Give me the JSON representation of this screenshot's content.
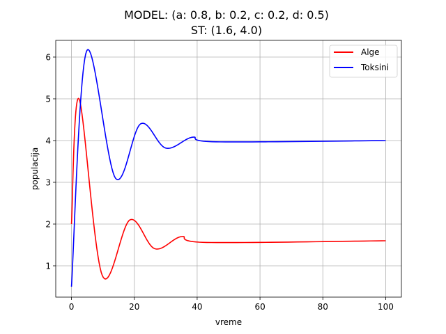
{
  "chart_data": {
    "type": "line",
    "title": "MODEL: (a: 0.8, b: 0.2, c: 0.2, d: 0.5)",
    "subtitle": "ST: (1.6, 4.0)",
    "xlabel": "vreme",
    "ylabel": "populacija",
    "xlim": [
      -5,
      105
    ],
    "ylim": [
      0.25,
      6.4
    ],
    "xticks": [
      0,
      20,
      40,
      60,
      80,
      100
    ],
    "yticks": [
      1,
      2,
      3,
      4,
      5,
      6
    ],
    "grid": true,
    "legend_position": "top-right",
    "model": {
      "a": 0.8,
      "b": 0.2,
      "c": 0.2,
      "d": 0.5
    },
    "initial": [
      2.0,
      0.5
    ],
    "steady_state": [
      1.6,
      4.0
    ],
    "t_end": 100,
    "series": [
      {
        "name": "Alge",
        "color": "#ff0000",
        "sample_points": [
          [
            0,
            2.0
          ],
          [
            2.4,
            5.0
          ],
          [
            9.8,
            0.77
          ],
          [
            18.6,
            2.1
          ],
          [
            26.5,
            1.41
          ],
          [
            35,
            1.7
          ],
          [
            43,
            1.56
          ],
          [
            100,
            1.6
          ]
        ]
      },
      {
        "name": "Toksini",
        "color": "#0000ff",
        "sample_points": [
          [
            0,
            0.5
          ],
          [
            4.8,
            6.14
          ],
          [
            14,
            3.1
          ],
          [
            22,
            4.4
          ],
          [
            30,
            3.82
          ],
          [
            38.5,
            4.08
          ],
          [
            46,
            3.97
          ],
          [
            100,
            4.0
          ]
        ]
      }
    ]
  }
}
